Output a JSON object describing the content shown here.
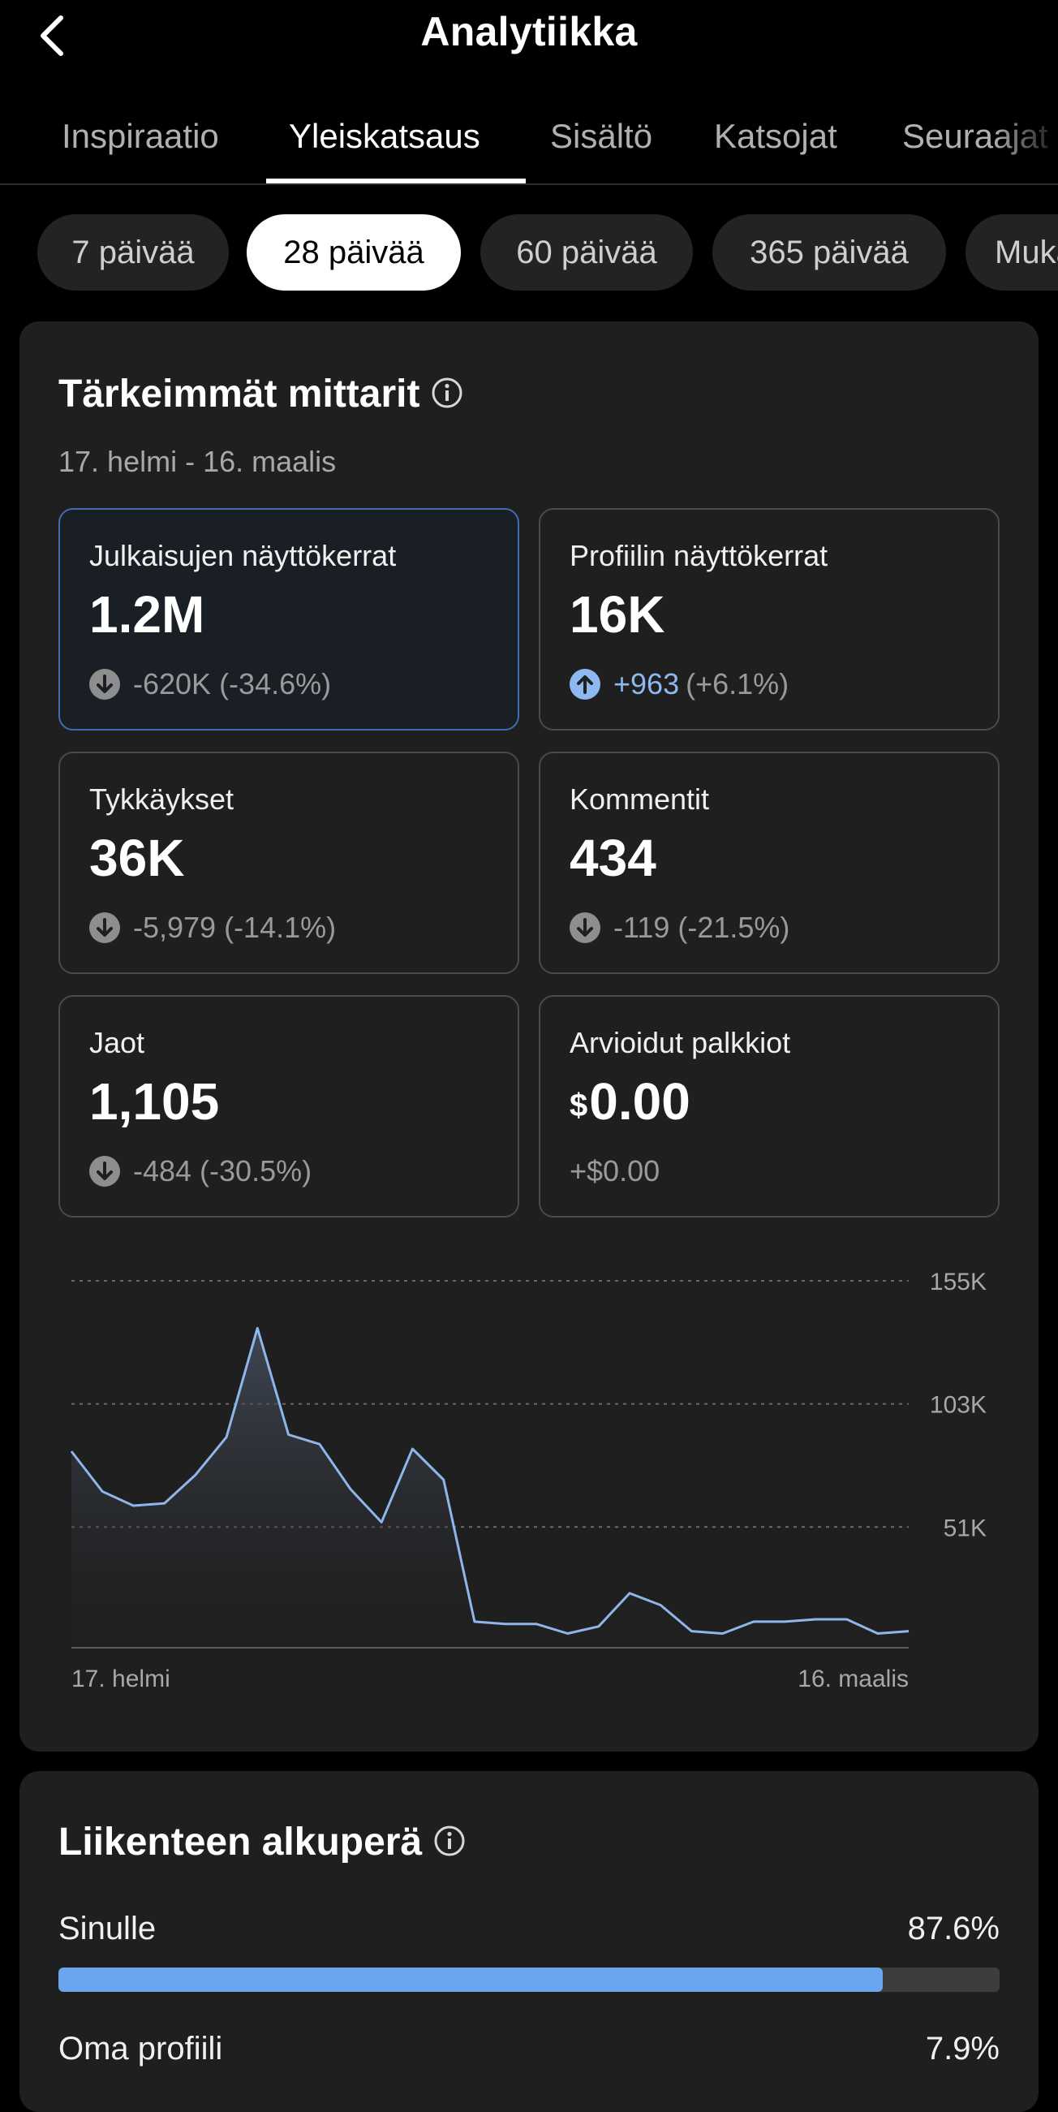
{
  "header": {
    "title": "Analytiikka"
  },
  "tabs": [
    {
      "label": "Inspiraatio"
    },
    {
      "label": "Yleiskatsaus"
    },
    {
      "label": "Sisältö"
    },
    {
      "label": "Katsojat"
    },
    {
      "label": "Seuraajat"
    }
  ],
  "periods": [
    {
      "label": "7 päivää"
    },
    {
      "label": "28 päivää"
    },
    {
      "label": "60 päivää"
    },
    {
      "label": "365 päivää"
    },
    {
      "label": "Mukautettu"
    }
  ],
  "key_metrics": {
    "title": "Tärkeimmät mittarit",
    "date_range": "17. helmi - 16. maalis",
    "items": [
      {
        "label": "Julkaisujen näyttökerrat",
        "value": "1.2M",
        "change": "-620K (-34.6%)",
        "direction": "down"
      },
      {
        "label": "Profiilin näyttökerrat",
        "value": "16K",
        "change_abs": "+963",
        "change_pct": "(+6.1%)",
        "direction": "up"
      },
      {
        "label": "Tykkäykset",
        "value": "36K",
        "change": "-5,979 (-14.1%)",
        "direction": "down"
      },
      {
        "label": "Kommentit",
        "value": "434",
        "change": "-119 (-21.5%)",
        "direction": "down"
      },
      {
        "label": "Jaot",
        "value": "1,105",
        "change": "-484 (-30.5%)",
        "direction": "down"
      },
      {
        "label": "Arvioidut palkkiot",
        "currency": "$",
        "value": "0.00",
        "change": "+$0.00",
        "direction": "none"
      }
    ]
  },
  "chart_data": {
    "type": "area",
    "x_start_label": "17. helmi",
    "x_end_label": "16. maalis",
    "y_ticks": [
      "155K",
      "103K",
      "51K"
    ],
    "y_tick_values": [
      155,
      103,
      51
    ],
    "ylim": [
      0,
      155
    ],
    "grid": true,
    "colors": {
      "line": "#8fb6ea",
      "fill_top": "#4a5567",
      "grid": "#6a6a6a"
    },
    "values": [
      83,
      66,
      60,
      61,
      73,
      89,
      135,
      90,
      86,
      67,
      53,
      84,
      71,
      11,
      10,
      10,
      6,
      9,
      23,
      18,
      7,
      6,
      11,
      11,
      12,
      12,
      6,
      7
    ]
  },
  "traffic": {
    "title": "Liikenteen alkuperä",
    "items": [
      {
        "label": "Sinulle",
        "value": "87.6%",
        "fraction": 0.876
      },
      {
        "label": "Oma profiili",
        "value": "7.9%",
        "fraction": 0.079
      }
    ]
  }
}
